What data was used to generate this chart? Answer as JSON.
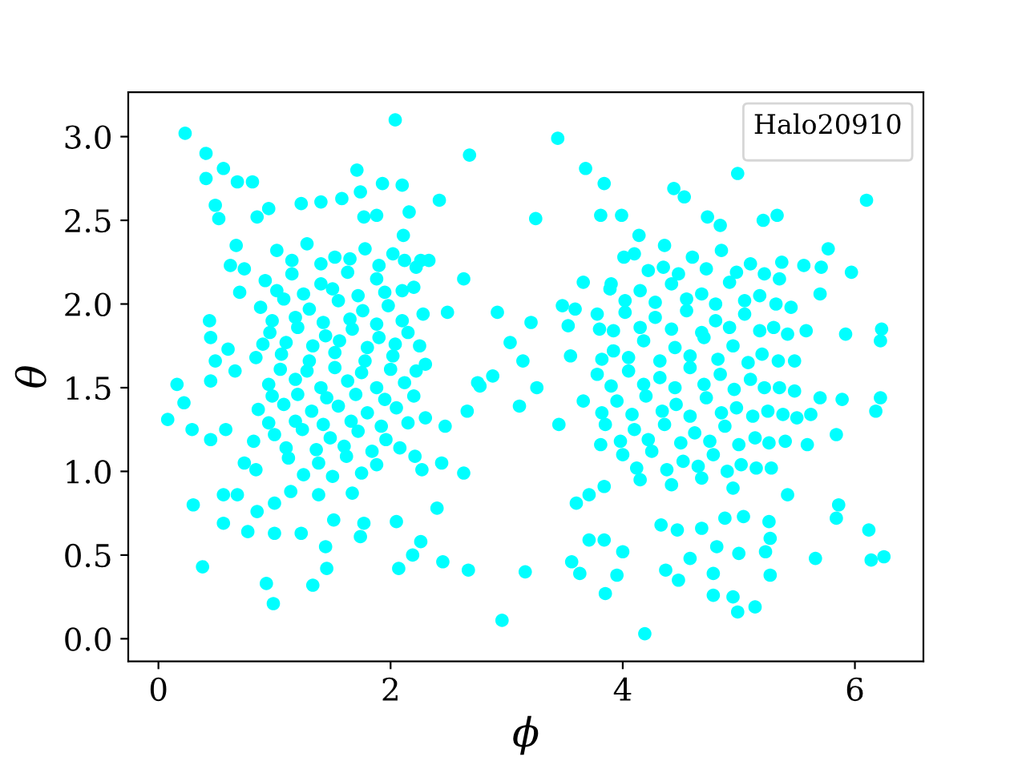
{
  "chart_data": {
    "type": "scatter",
    "xlabel": "ϕ",
    "ylabel": "θ",
    "legend_title": "Halo20910",
    "marker": "circle",
    "xlim": [
      -0.26,
      6.59
    ],
    "ylim": [
      -0.135,
      3.265
    ],
    "xticks": [
      0,
      2,
      4,
      6
    ],
    "yticks": [
      {
        "value": 0,
        "label": "0.0"
      },
      0.5,
      {
        "value": 1,
        "label": "1.0"
      },
      1.5,
      {
        "value": 2,
        "label": "2.0"
      },
      2.5,
      {
        "value": 3,
        "label": "3.0"
      }
    ],
    "series": [
      {
        "color": "#00ffff",
        "x": [
          0.23,
          0.08,
          0.16,
          0.22,
          0.29,
          0.41,
          0.56,
          0.68,
          0.81,
          0.41,
          0.49,
          0.52,
          0.85,
          0.95,
          2.04,
          1.71,
          1.93,
          1.74,
          1.58,
          1.23,
          1.4,
          1.77,
          1.88,
          0.67,
          0.62,
          0.74,
          0.7,
          0.44,
          0.45,
          0.6,
          0.49,
          0.66,
          0.45,
          0.3,
          0.38,
          0.56,
          0.56,
          0.68,
          0.77,
          0.85,
          1.0,
          1.0,
          0.93,
          0.99,
          1.33,
          1.23,
          1.44,
          1.45,
          1.38,
          1.67,
          1.74,
          1.77,
          1.51,
          1.14,
          0.45,
          0.58,
          0.74,
          0.84,
          0.82,
          2.07,
          2.05,
          1.02,
          1.28,
          1.52,
          1.78,
          2.02,
          2.22,
          0.92,
          1.15,
          1.4,
          1.63,
          1.88,
          2.1,
          0.88,
          1.08,
          1.3,
          1.55,
          1.76,
          1.98,
          2.28,
          0.96,
          1.2,
          1.44,
          1.67,
          1.9,
          2.15,
          0.84,
          1.06,
          1.3,
          1.52,
          1.78,
          2.02,
          2.3,
          0.95,
          1.18,
          1.4,
          1.63,
          1.88,
          2.12,
          0.86,
          1.08,
          1.32,
          1.55,
          1.8,
          2.05,
          2.3,
          1.0,
          1.24,
          1.48,
          1.72,
          1.96,
          1.12,
          1.38,
          1.62,
          1.88,
          1.15,
          1.4,
          1.65,
          1.9,
          2.12,
          1.02,
          1.25,
          1.5,
          1.72,
          1.95,
          2.2,
          0.98,
          1.18,
          1.42,
          1.65,
          1.88,
          2.1,
          0.9,
          1.1,
          1.33,
          1.56,
          1.8,
          2.04,
          2.25,
          1.05,
          1.28,
          1.52,
          1.75,
          2.0,
          2.22,
          0.98,
          1.2,
          1.45,
          1.7,
          1.95,
          2.2,
          0.95,
          1.18,
          1.42,
          1.66,
          1.92,
          2.15,
          1.1,
          1.36,
          1.6,
          1.84,
          2.08,
          1.25,
          1.5,
          1.75,
          2.96,
          3.16,
          2.67,
          2.45,
          2.19,
          2.26,
          2.4,
          2.63,
          2.44,
          2.27,
          2.21,
          2.47,
          2.66,
          2.77,
          3.11,
          3.26,
          3.45,
          2.68,
          3.44,
          3.25,
          2.42,
          2.16,
          2.11,
          2.1,
          2.63,
          2.49,
          2.92,
          3.21,
          3.03,
          3.14,
          2.88,
          2.75,
          2.26,
          2.33,
          3.6,
          3.71,
          3.84,
          3.71,
          3.84,
          3.56,
          3.63,
          3.95,
          3.85,
          4.0,
          4.19,
          3.66,
          3.81,
          3.68,
          3.84,
          3.81,
          3.99,
          4.14,
          4.01,
          3.53,
          3.66,
          3.48,
          3.59,
          3.55,
          3.89,
          3.78,
          4.99,
          6.1,
          5.97,
          5.77,
          5.7,
          6.23,
          6.22,
          5.92,
          5.58,
          4.44,
          4.53,
          4.84,
          5.33,
          5.21,
          5.37,
          5.56,
          5.71,
          4.36,
          4.73,
          6.22,
          6.18,
          5.89,
          5.84,
          5.86,
          5.84,
          6.12,
          6.14,
          6.25,
          5.66,
          5.42,
          5.26,
          5.27,
          5.23,
          5.27,
          5.14,
          4.99,
          4.95,
          4.78,
          4.78,
          5.0,
          4.58,
          4.48,
          4.37,
          4.81,
          4.47,
          4.33,
          4.68,
          4.88,
          5.04,
          5.59,
          5.7,
          5.62,
          4.1,
          4.35,
          4.6,
          4.85,
          5.1,
          5.35,
          3.9,
          4.15,
          4.42,
          4.68,
          4.92,
          5.18,
          5.45,
          3.8,
          4.02,
          4.28,
          4.55,
          4.8,
          5.05,
          5.3,
          3.92,
          4.18,
          4.45,
          4.7,
          4.95,
          5.2,
          5.48,
          3.78,
          4.05,
          4.32,
          4.58,
          4.84,
          5.1,
          5.35,
          3.95,
          4.2,
          4.46,
          4.72,
          4.98,
          5.25,
          5.5,
          3.85,
          4.1,
          4.36,
          4.62,
          4.88,
          5.14,
          5.4,
          4.0,
          4.25,
          4.52,
          4.78,
          5.02,
          5.28,
          4.15,
          4.42,
          4.68,
          4.95,
          4.22,
          4.48,
          4.72,
          4.98,
          5.22,
          4.02,
          4.28,
          4.55,
          4.8,
          5.05,
          5.32,
          3.92,
          4.15,
          4.42,
          4.68,
          4.92,
          5.18,
          5.42,
          3.82,
          4.05,
          4.32,
          4.58,
          4.82,
          5.08,
          5.34,
          3.9,
          4.18,
          4.45,
          4.7,
          4.96,
          5.22,
          5.48,
          3.82,
          4.08,
          4.34,
          4.58,
          4.85,
          5.12,
          5.38,
          3.98,
          4.22,
          4.5,
          4.75,
          5.0,
          5.26,
          4.12,
          4.38,
          4.65,
          4.9,
          5.15
        ],
        "values": [
          3.02,
          1.31,
          1.52,
          1.41,
          1.25,
          2.9,
          2.81,
          2.73,
          2.73,
          2.75,
          2.59,
          2.51,
          2.52,
          2.57,
          3.1,
          2.8,
          2.72,
          2.67,
          2.63,
          2.6,
          2.61,
          2.52,
          2.53,
          2.35,
          2.23,
          2.21,
          2.07,
          1.9,
          1.8,
          1.73,
          1.66,
          1.6,
          1.54,
          0.8,
          0.43,
          0.69,
          0.86,
          0.86,
          0.64,
          0.76,
          0.81,
          0.63,
          0.33,
          0.21,
          0.32,
          0.63,
          0.55,
          0.42,
          0.86,
          0.87,
          0.61,
          0.69,
          0.71,
          0.88,
          1.19,
          1.25,
          1.05,
          1.01,
          1.18,
          0.42,
          0.7,
          2.32,
          2.36,
          2.28,
          2.33,
          2.3,
          2.22,
          2.14,
          2.18,
          2.12,
          2.19,
          2.15,
          2.08,
          1.98,
          2.03,
          1.97,
          2.02,
          1.96,
          1.99,
          1.94,
          1.83,
          1.86,
          1.81,
          1.85,
          1.8,
          1.83,
          1.68,
          1.7,
          1.66,
          1.71,
          1.66,
          1.69,
          1.64,
          1.52,
          1.55,
          1.5,
          1.54,
          1.5,
          1.53,
          1.37,
          1.4,
          1.36,
          1.39,
          1.35,
          1.38,
          1.32,
          1.22,
          1.25,
          1.2,
          1.24,
          1.19,
          1.08,
          1.05,
          1.09,
          1.04,
          2.26,
          2.24,
          2.27,
          2.23,
          2.26,
          2.08,
          2.06,
          2.09,
          2.05,
          2.07,
          2.1,
          1.9,
          1.92,
          1.89,
          1.91,
          1.88,
          1.9,
          1.76,
          1.77,
          1.75,
          1.78,
          1.74,
          1.76,
          1.75,
          1.61,
          1.6,
          1.62,
          1.59,
          1.61,
          1.6,
          1.45,
          1.46,
          1.44,
          1.46,
          1.43,
          1.45,
          1.29,
          1.3,
          1.28,
          1.3,
          1.27,
          1.29,
          1.14,
          1.13,
          1.15,
          1.12,
          1.14,
          0.98,
          0.97,
          0.99,
          0.11,
          0.4,
          0.41,
          0.46,
          0.5,
          0.58,
          0.78,
          0.99,
          1.05,
          1.01,
          1.09,
          1.27,
          1.36,
          1.51,
          1.39,
          1.5,
          1.28,
          2.89,
          2.99,
          2.51,
          2.62,
          2.55,
          2.41,
          2.71,
          2.15,
          1.95,
          1.95,
          1.89,
          1.77,
          1.66,
          1.57,
          1.53,
          2.26,
          2.26,
          0.81,
          0.86,
          0.91,
          0.59,
          0.59,
          0.46,
          0.39,
          0.38,
          0.27,
          0.52,
          0.03,
          1.42,
          1.16,
          2.81,
          2.72,
          2.53,
          2.53,
          2.41,
          2.28,
          1.87,
          2.13,
          1.99,
          1.97,
          1.69,
          2.09,
          1.94,
          2.78,
          2.62,
          2.19,
          2.33,
          2.06,
          1.85,
          1.78,
          1.82,
          1.84,
          2.69,
          2.64,
          2.47,
          2.53,
          2.5,
          2.25,
          2.23,
          2.22,
          2.35,
          2.52,
          1.44,
          1.36,
          1.43,
          1.22,
          0.8,
          0.72,
          0.65,
          0.47,
          0.49,
          0.48,
          0.86,
          0.7,
          0.6,
          0.52,
          0.38,
          0.19,
          0.16,
          0.25,
          0.26,
          0.39,
          0.51,
          0.48,
          0.35,
          0.41,
          0.55,
          0.65,
          0.68,
          0.66,
          0.72,
          0.73,
          1.16,
          1.44,
          1.34,
          2.3,
          2.22,
          2.28,
          2.32,
          2.24,
          2.15,
          2.12,
          2.08,
          2.12,
          2.06,
          2.13,
          2.05,
          1.98,
          1.85,
          1.95,
          1.92,
          1.96,
          1.9,
          1.94,
          1.86,
          1.72,
          1.78,
          1.74,
          1.8,
          1.75,
          1.7,
          1.66,
          1.58,
          1.6,
          1.56,
          1.62,
          1.58,
          1.55,
          1.5,
          1.42,
          1.45,
          1.4,
          1.44,
          1.38,
          1.36,
          1.32,
          1.28,
          1.25,
          1.28,
          1.23,
          1.27,
          1.2,
          1.18,
          1.1,
          1.12,
          1.06,
          1.1,
          1.04,
          1.02,
          0.95,
          0.92,
          0.96,
          0.9,
          2.2,
          2.18,
          2.21,
          2.19,
          2.18,
          2.02,
          2.01,
          2.03,
          2.0,
          2.02,
          2.0,
          1.84,
          1.86,
          1.85,
          1.83,
          1.86,
          1.84,
          1.82,
          1.67,
          1.68,
          1.66,
          1.69,
          1.67,
          1.65,
          1.66,
          1.51,
          1.52,
          1.5,
          1.52,
          1.49,
          1.5,
          1.48,
          1.35,
          1.34,
          1.36,
          1.33,
          1.35,
          1.33,
          1.34,
          1.18,
          1.19,
          1.17,
          1.18,
          1.16,
          1.17,
          1.02,
          1.01,
          1.03,
          1.0,
          1.02
        ]
      }
    ]
  }
}
